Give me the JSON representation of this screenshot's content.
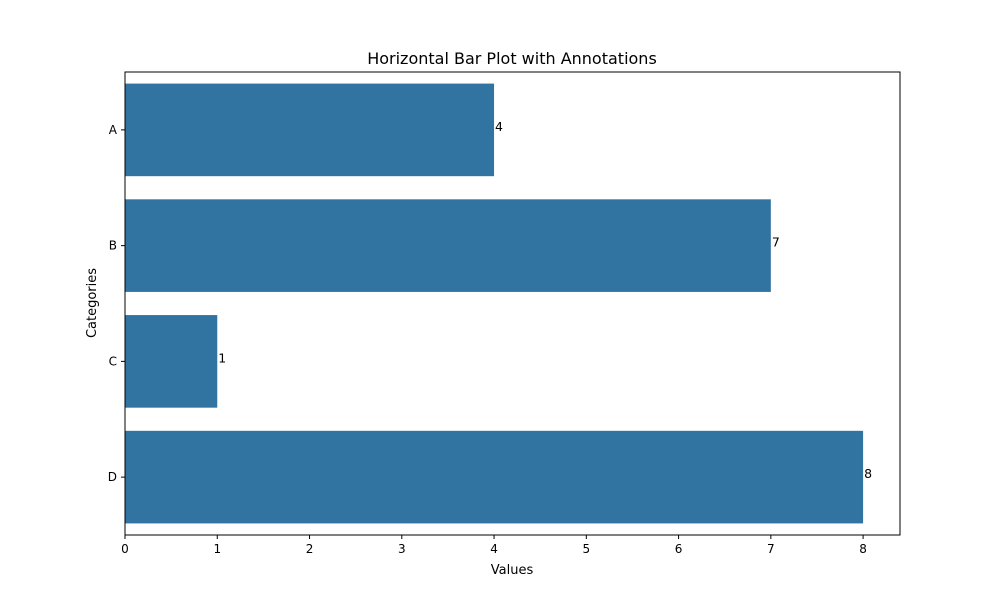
{
  "chart_data": {
    "type": "bar",
    "orientation": "horizontal",
    "title": "Horizontal Bar Plot with Annotations",
    "xlabel": "Values",
    "ylabel": "Categories",
    "categories": [
      "A",
      "B",
      "C",
      "D"
    ],
    "values": [
      4,
      7,
      1,
      8
    ],
    "data_labels": [
      "4",
      "7",
      "1",
      "8"
    ],
    "xlim": [
      0,
      8.4
    ],
    "xticks": [
      0,
      1,
      2,
      3,
      4,
      5,
      6,
      7,
      8
    ],
    "xtick_labels": [
      "0",
      "1",
      "2",
      "3",
      "4",
      "5",
      "6",
      "7",
      "8"
    ],
    "grid": false,
    "legend": "none",
    "bar_color": "#3274a1"
  }
}
